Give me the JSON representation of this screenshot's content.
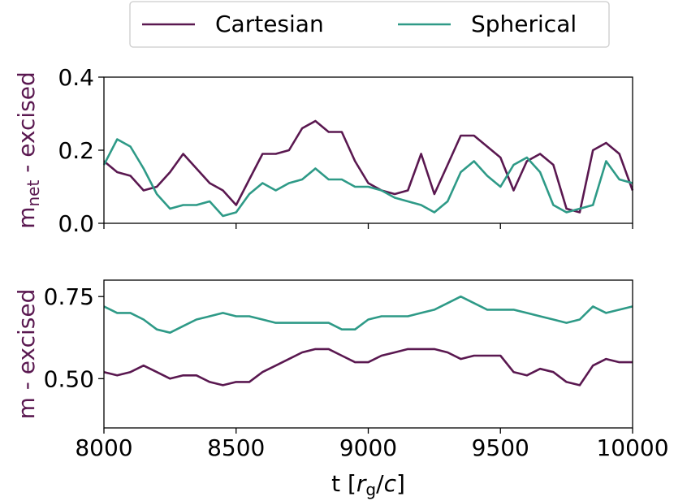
{
  "chart_data": [
    {
      "type": "line",
      "ylabel_parts": [
        "m",
        "net",
        " - excised"
      ],
      "x": [
        8000,
        8050,
        8100,
        8150,
        8200,
        8250,
        8300,
        8350,
        8400,
        8450,
        8500,
        8550,
        8600,
        8650,
        8700,
        8750,
        8800,
        8850,
        8900,
        8950,
        9000,
        9050,
        9100,
        9150,
        9200,
        9250,
        9300,
        9350,
        9400,
        9450,
        9500,
        9550,
        9600,
        9650,
        9700,
        9750,
        9800,
        9850,
        9900,
        9950,
        10000
      ],
      "series": [
        {
          "name": "Cartesian",
          "color": "#5a1850",
          "values": [
            0.17,
            0.14,
            0.13,
            0.09,
            0.1,
            0.14,
            0.19,
            0.15,
            0.11,
            0.09,
            0.05,
            0.12,
            0.19,
            0.19,
            0.2,
            0.26,
            0.28,
            0.25,
            0.25,
            0.17,
            0.11,
            0.09,
            0.08,
            0.09,
            0.19,
            0.08,
            0.16,
            0.24,
            0.24,
            0.21,
            0.18,
            0.09,
            0.17,
            0.19,
            0.16,
            0.04,
            0.03,
            0.2,
            0.22,
            0.19,
            0.09
          ]
        },
        {
          "name": "Spherical",
          "color": "#2e9a87",
          "values": [
            0.16,
            0.23,
            0.21,
            0.15,
            0.08,
            0.04,
            0.05,
            0.05,
            0.06,
            0.02,
            0.03,
            0.08,
            0.11,
            0.09,
            0.11,
            0.12,
            0.15,
            0.12,
            0.12,
            0.1,
            0.1,
            0.09,
            0.07,
            0.06,
            0.05,
            0.03,
            0.06,
            0.14,
            0.17,
            0.13,
            0.1,
            0.16,
            0.18,
            0.14,
            0.05,
            0.03,
            0.04,
            0.05,
            0.17,
            0.12,
            0.11
          ]
        }
      ],
      "xlim": [
        8000,
        10000
      ],
      "xticks": [
        8000,
        8500,
        9000,
        9500,
        10000
      ],
      "ylim": [
        0,
        0.4
      ],
      "yticks": [
        {
          "value": 0,
          "label": "0.0"
        },
        0.2,
        0.4
      ]
    },
    {
      "type": "line",
      "ylabel": "m - excised",
      "xlabel_parts": [
        "t [",
        "r",
        "g",
        "/",
        "c",
        "]"
      ],
      "x": [
        8000,
        8050,
        8100,
        8150,
        8200,
        8250,
        8300,
        8350,
        8400,
        8450,
        8500,
        8550,
        8600,
        8650,
        8700,
        8750,
        8800,
        8850,
        8900,
        8950,
        9000,
        9050,
        9100,
        9150,
        9200,
        9250,
        9300,
        9350,
        9400,
        9450,
        9500,
        9550,
        9600,
        9650,
        9700,
        9750,
        9800,
        9850,
        9900,
        9950,
        10000
      ],
      "series": [
        {
          "color": "#5a1850",
          "values": [
            0.52,
            0.51,
            0.52,
            0.54,
            0.52,
            0.5,
            0.51,
            0.51,
            0.49,
            0.48,
            0.49,
            0.49,
            0.52,
            0.54,
            0.56,
            0.58,
            0.59,
            0.59,
            0.57,
            0.55,
            0.55,
            0.57,
            0.58,
            0.59,
            0.59,
            0.59,
            0.58,
            0.56,
            0.57,
            0.57,
            0.57,
            0.52,
            0.51,
            0.53,
            0.52,
            0.49,
            0.48,
            0.54,
            0.56,
            0.55,
            0.55
          ]
        },
        {
          "color": "#2e9a87",
          "values": [
            0.72,
            0.7,
            0.7,
            0.68,
            0.65,
            0.64,
            0.66,
            0.68,
            0.69,
            0.7,
            0.69,
            0.69,
            0.68,
            0.67,
            0.67,
            0.67,
            0.67,
            0.67,
            0.65,
            0.65,
            0.68,
            0.69,
            0.69,
            0.69,
            0.7,
            0.71,
            0.73,
            0.75,
            0.73,
            0.71,
            0.71,
            0.71,
            0.7,
            0.69,
            0.68,
            0.67,
            0.68,
            0.72,
            0.7,
            0.71,
            0.72
          ]
        }
      ],
      "xlim": [
        8000,
        10000
      ],
      "xticks": [
        8000,
        8500,
        9000,
        9500,
        10000
      ],
      "ylim": [
        0.35,
        0.8
      ],
      "yticks": [
        {
          "value": 0.5,
          "label": "0.50"
        },
        {
          "value": 0.75,
          "label": "0.75"
        }
      ]
    }
  ]
}
